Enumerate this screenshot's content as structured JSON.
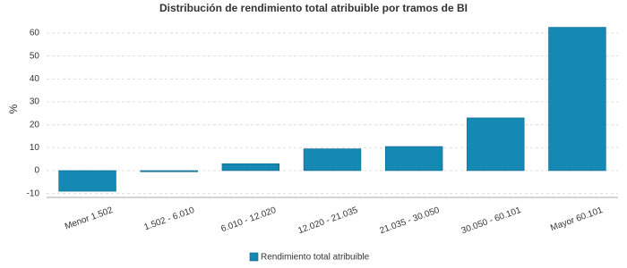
{
  "chart_data": {
    "type": "bar",
    "title": "Distribución de rendimiento total atribuible por tramos de BI",
    "y_label": "%",
    "categories": [
      "Menor 1.502",
      "1.502 - 6.010",
      "6.010 - 12.020",
      "12.020 - 21.035",
      "21.035 - 30.050",
      "30.050 - 60.101",
      "Mayor 60.101"
    ],
    "series": [
      {
        "name": "Rendimiento total atribuible",
        "color": "#1589b3",
        "values": [
          -9,
          -0.5,
          3,
          9.5,
          10.5,
          23,
          62.5
        ]
      }
    ],
    "ylim": [
      -11.7,
      63.5
    ],
    "yticks": [
      -10,
      0,
      10,
      20,
      30,
      40,
      50,
      60
    ],
    "grid": true,
    "legend": "bottom"
  }
}
